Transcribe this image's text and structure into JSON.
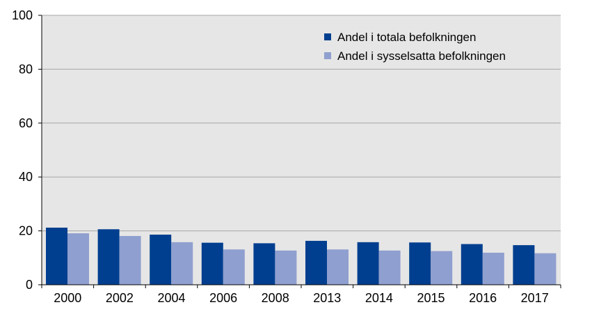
{
  "chart_data": {
    "type": "bar",
    "title": "",
    "xlabel": "",
    "ylabel": "",
    "categories": [
      "2000",
      "2002",
      "2004",
      "2006",
      "2008",
      "2013",
      "2014",
      "2015",
      "2016",
      "2017"
    ],
    "series": [
      {
        "name": "Andel i totala befolkningen",
        "color": "#003f8f",
        "values": [
          21.2,
          20.6,
          18.6,
          15.6,
          15.4,
          16.3,
          15.8,
          15.7,
          15.1,
          14.7
        ]
      },
      {
        "name": "Andel i sysselsatta befolkningen",
        "color": "#8f9fcf",
        "values": [
          19.1,
          18.1,
          15.8,
          13.1,
          12.7,
          13.1,
          12.7,
          12.5,
          11.9,
          11.7
        ]
      }
    ],
    "ylim": [
      0,
      100
    ],
    "yticks": [
      0,
      20,
      40,
      60,
      80,
      100
    ],
    "grid": true,
    "legend_position": "top-right",
    "plot_background": "#e6e6e6"
  }
}
